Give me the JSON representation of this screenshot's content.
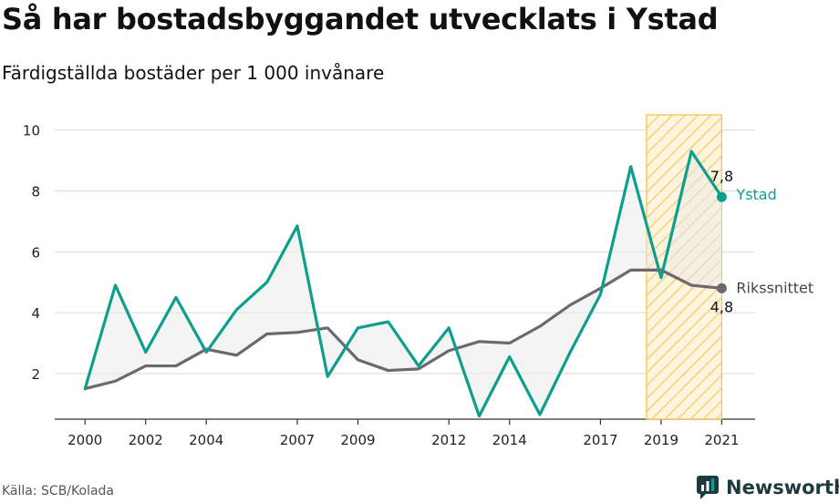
{
  "title": "Så har bostadsbyggandet utvecklats i Ystad",
  "subtitle": "Färdigställda bostäder per 1 000 invånare",
  "source": "Källa: SCB/Kolada",
  "brand": "Newsworthy",
  "colors": {
    "ystad": "#0e9e8e",
    "riks": "#6b686e",
    "fill": "#e9e9e9",
    "highlight": "#f5c242",
    "brand": "#1e3a40",
    "grid": "#d9d9d9"
  },
  "chart_data": {
    "type": "line",
    "x": [
      2000,
      2001,
      2002,
      2003,
      2004,
      2005,
      2006,
      2007,
      2008,
      2009,
      2010,
      2011,
      2012,
      2013,
      2014,
      2015,
      2016,
      2017,
      2018,
      2019,
      2020,
      2021
    ],
    "series": [
      {
        "name": "Ystad",
        "values": [
          1.5,
          4.9,
          2.7,
          4.5,
          2.7,
          4.1,
          5.0,
          6.85,
          1.9,
          3.5,
          3.7,
          2.25,
          3.5,
          0.6,
          2.55,
          0.65,
          2.7,
          4.6,
          8.8,
          5.15,
          9.3,
          7.8
        ]
      },
      {
        "name": "Rikssnittet",
        "values": [
          1.5,
          1.75,
          2.25,
          2.25,
          2.8,
          2.6,
          3.3,
          3.35,
          3.5,
          2.45,
          2.1,
          2.15,
          2.75,
          3.05,
          3.0,
          3.55,
          4.25,
          4.8,
          5.4,
          5.4,
          4.9,
          4.8
        ]
      }
    ],
    "end_labels": {
      "Ystad": "7,8",
      "Rikssnittet": "4,8"
    },
    "xticks": [
      2000,
      2002,
      2004,
      2007,
      2009,
      2012,
      2014,
      2017,
      2019,
      2021
    ],
    "xtick_labels": [
      "2000",
      "2002",
      "2004",
      "2007",
      "2009",
      "2012",
      "2014",
      "2017",
      "2019",
      "2021"
    ],
    "yticks": [
      2,
      4,
      6,
      8,
      10
    ],
    "ytick_labels": [
      "2",
      "4",
      "6",
      "8",
      "10"
    ],
    "ylim": [
      0.5,
      10.5
    ],
    "highlight_range": [
      2019,
      2021
    ],
    "grid": true
  }
}
